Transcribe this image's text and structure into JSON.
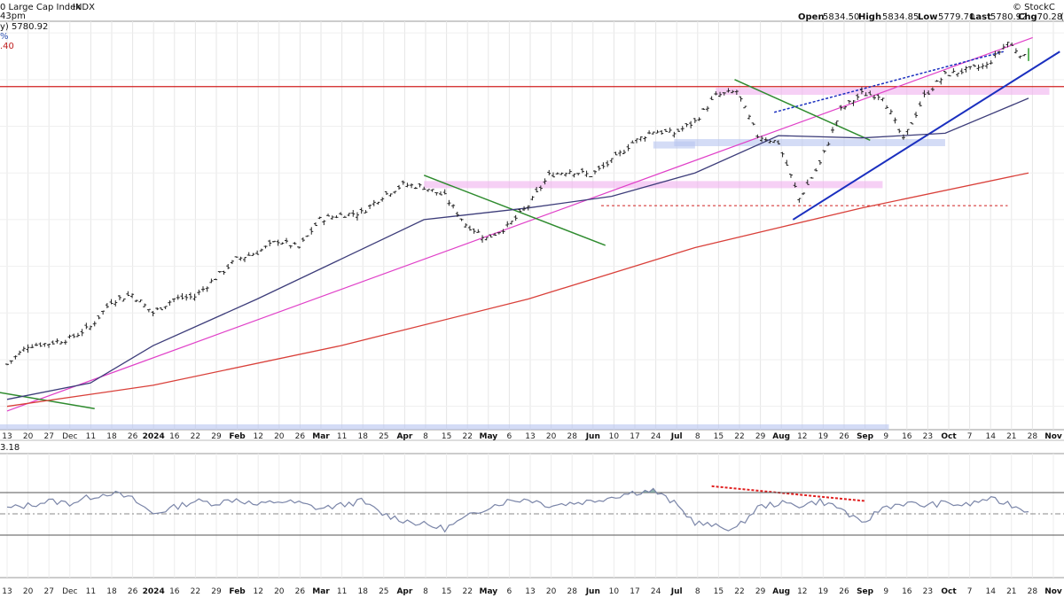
{
  "header": {
    "title": "0 Large Cap Index",
    "exchange": "INDX",
    "watermark": "© StockC",
    "time": "43pm",
    "last_line": "y) 5780.92",
    "pct_line": "%",
    "chg_line": ".40",
    "open_label": "Open",
    "open": "5834.50",
    "high_label": "High",
    "high": "5834.85",
    "low_label": "Low",
    "low": "5779.70",
    "last_label": "Last",
    "last": "5780.92",
    "chg_label": "Chg",
    "chg": "-70.28",
    "chg_suffix": "("
  },
  "indicator_label": "3.18",
  "colors": {
    "price": "#222222",
    "ma50": "#3d3d7a",
    "ma200": "#d9403a",
    "pink_trend": "#e040c8",
    "green_trend": "#2e8b2e",
    "blue_trend": "#1a2fbf",
    "horizontal_resistance": "#d02020",
    "pink_zone": "#f0b0ee",
    "blue_zone": "#b8c4f0",
    "rsi_line": "#7a85a8",
    "rsi_fill": "#6a9a94",
    "divergence": "#e02020"
  },
  "chart_data": {
    "type": "line",
    "title": "0 Large Cap Index",
    "x_tick_labels": [
      "13",
      "20",
      "27",
      "Dec",
      "11",
      "18",
      "26",
      "2024",
      "16",
      "22",
      "29",
      "Feb",
      "12",
      "20",
      "26",
      "Mar",
      "11",
      "18",
      "25",
      "Apr",
      "8",
      "15",
      "22",
      "May",
      "6",
      "13",
      "20",
      "28",
      "Jun",
      "10",
      "17",
      "24",
      "Jul",
      "8",
      "15",
      "22",
      "29",
      "Aug",
      "12",
      "19",
      "26",
      "Sep",
      "9",
      "16",
      "23",
      "Oct",
      "7",
      "14",
      "21",
      "28",
      "Nov"
    ],
    "bold_ticks": [
      "2024",
      "Feb",
      "Mar",
      "Apr",
      "May",
      "Jun",
      "Jul",
      "Aug",
      "Sep",
      "Oct",
      "Nov"
    ],
    "ohlc_last": {
      "open": 5834.5,
      "high": 5834.85,
      "low": 5779.7,
      "last": 5780.92,
      "chg": -70.28
    },
    "price_series": [
      [
        "Nov 13",
        4480
      ],
      [
        "Nov 20",
        4560
      ],
      [
        "Nov 27",
        4570
      ],
      [
        "Dec 4",
        4590
      ],
      [
        "Dec 11",
        4640
      ],
      [
        "Dec 18",
        4750
      ],
      [
        "Dec 26",
        4780
      ],
      [
        "Jan 2",
        4700
      ],
      [
        "Jan 8",
        4760
      ],
      [
        "Jan 16",
        4770
      ],
      [
        "Jan 22",
        4850
      ],
      [
        "Jan 29",
        4930
      ],
      [
        "Feb 5",
        4960
      ],
      [
        "Feb 12",
        5010
      ],
      [
        "Feb 20",
        4980
      ],
      [
        "Feb 26",
        5100
      ],
      [
        "Mar 4",
        5120
      ],
      [
        "Mar 11",
        5130
      ],
      [
        "Mar 18",
        5200
      ],
      [
        "Mar 25",
        5250
      ],
      [
        "Apr 1",
        5240
      ],
      [
        "Apr 8",
        5200
      ],
      [
        "Apr 15",
        5080
      ],
      [
        "Apr 22",
        5020
      ],
      [
        "Apr 29",
        5070
      ],
      [
        "May 6",
        5160
      ],
      [
        "May 13",
        5290
      ],
      [
        "May 20",
        5310
      ],
      [
        "May 28",
        5290
      ],
      [
        "Jun 3",
        5350
      ],
      [
        "Jun 10",
        5430
      ],
      [
        "Jun 17",
        5480
      ],
      [
        "Jun 24",
        5470
      ],
      [
        "Jul 1",
        5520
      ],
      [
        "Jul 8",
        5630
      ],
      [
        "Jul 15",
        5650
      ],
      [
        "Jul 22",
        5460
      ],
      [
        "Jul 29",
        5430
      ],
      [
        "Aug 5",
        5190
      ],
      [
        "Aug 12",
        5340
      ],
      [
        "Aug 19",
        5570
      ],
      [
        "Aug 26",
        5640
      ],
      [
        "Sep 3",
        5630
      ],
      [
        "Sep 9",
        5440
      ],
      [
        "Sep 16",
        5630
      ],
      [
        "Sep 23",
        5720
      ],
      [
        "Sep 30",
        5740
      ],
      [
        "Oct 7",
        5760
      ],
      [
        "Oct 14",
        5860
      ],
      [
        "Oct 21",
        5780
      ]
    ],
    "ma50_series": [
      [
        "Nov 13",
        4330
      ],
      [
        "Dec 11",
        4400
      ],
      [
        "Jan 2",
        4560
      ],
      [
        "Feb 5",
        4760
      ],
      [
        "Mar 4",
        4930
      ],
      [
        "Apr 1",
        5100
      ],
      [
        "May 6",
        5150
      ],
      [
        "Jun 3",
        5200
      ],
      [
        "Jul 1",
        5300
      ],
      [
        "Jul 29",
        5460
      ],
      [
        "Aug 26",
        5450
      ],
      [
        "Sep 23",
        5470
      ],
      [
        "Oct 21",
        5620
      ]
    ],
    "ma200_series": [
      [
        "Nov 13",
        4300
      ],
      [
        "Jan 2",
        4390
      ],
      [
        "Mar 4",
        4560
      ],
      [
        "May 6",
        4760
      ],
      [
        "Jul 1",
        4980
      ],
      [
        "Aug 26",
        5150
      ],
      [
        "Oct 21",
        5300
      ]
    ],
    "indicator_series": [
      55,
      58,
      62,
      60,
      66,
      70,
      64,
      50,
      56,
      62,
      60,
      64,
      58,
      62,
      60,
      55,
      58,
      62,
      50,
      44,
      40,
      36,
      46,
      56,
      62,
      64,
      58,
      60,
      62,
      66,
      70,
      72,
      60,
      42,
      38,
      36,
      56,
      60,
      58,
      62,
      55,
      40,
      56,
      60,
      58,
      60,
      58,
      64,
      60,
      52
    ],
    "x": [
      "Nov 13",
      "Nov 20",
      "Nov 27",
      "Dec 4",
      "Dec 11",
      "Dec 18",
      "Dec 26",
      "Jan 2",
      "Jan 8",
      "Jan 16",
      "Jan 22",
      "Jan 29",
      "Feb 5",
      "Feb 12",
      "Feb 20",
      "Feb 26",
      "Mar 4",
      "Mar 11",
      "Mar 18",
      "Mar 25",
      "Apr 1",
      "Apr 8",
      "Apr 15",
      "Apr 22",
      "Apr 29",
      "May 6",
      "May 13",
      "May 20",
      "May 28",
      "Jun 3",
      "Jun 10",
      "Jun 17",
      "Jun 24",
      "Jul 1",
      "Jul 8",
      "Jul 15",
      "Jul 22",
      "Jul 29",
      "Aug 5",
      "Aug 12",
      "Aug 19",
      "Aug 26",
      "Sep 3",
      "Sep 9",
      "Sep 16",
      "Sep 23",
      "Sep 30",
      "Oct 7",
      "Oct 14",
      "Oct 21"
    ],
    "ylim": [
      4200,
      5950
    ],
    "indicator_ylim": [
      0,
      100
    ],
    "indicator_levels": [
      70,
      50,
      30
    ],
    "horizontal_resistance_level": 5670,
    "grid": true,
    "legend": "top-left"
  }
}
